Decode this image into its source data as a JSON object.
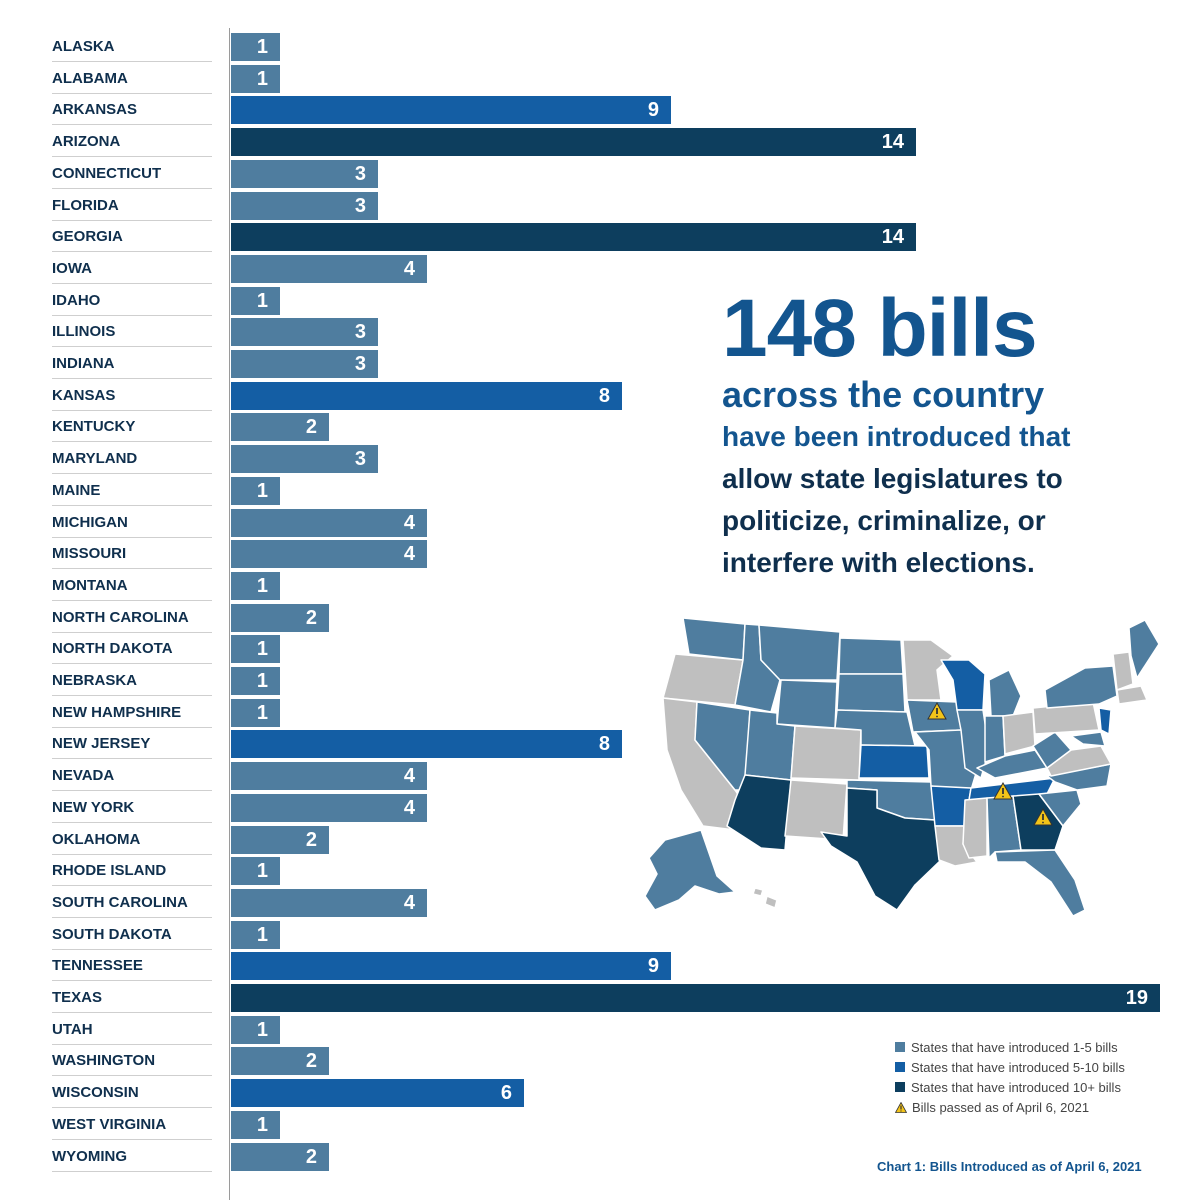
{
  "chart_data": {
    "type": "bar",
    "orientation": "horizontal",
    "categories": [
      "ALASKA",
      "ALABAMA",
      "ARKANSAS",
      "ARIZONA",
      "CONNECTICUT",
      "FLORIDA",
      "GEORGIA",
      "IOWA",
      "IDAHO",
      "ILLINOIS",
      "INDIANA",
      "KANSAS",
      "KENTUCKY",
      "MARYLAND",
      "MAINE",
      "MICHIGAN",
      "MISSOURI",
      "MONTANA",
      "NORTH CAROLINA",
      "NORTH DAKOTA",
      "NEBRASKA",
      "NEW HAMPSHIRE",
      "NEW JERSEY",
      "NEVADA",
      "NEW YORK",
      "OKLAHOMA",
      "RHODE ISLAND",
      "SOUTH CAROLINA",
      "SOUTH DAKOTA",
      "TENNESSEE",
      "TEXAS",
      "UTAH",
      "WASHINGTON",
      "WISCONSIN",
      "WEST VIRGINIA",
      "WYOMING"
    ],
    "values": [
      1,
      1,
      9,
      14,
      3,
      3,
      14,
      4,
      1,
      3,
      3,
      8,
      2,
      3,
      1,
      4,
      4,
      1,
      2,
      1,
      1,
      1,
      8,
      4,
      4,
      2,
      1,
      4,
      1,
      9,
      19,
      1,
      2,
      6,
      1,
      2
    ],
    "xlim": [
      0,
      19
    ],
    "title": "Chart 1: Bills Introduced as of April 6, 2021",
    "xlabel": "",
    "ylabel": "",
    "grid": false,
    "legend": [
      {
        "label": "States that have introduced 1-5 bills",
        "color": "#4f7d9f"
      },
      {
        "label": "States that have introduced 5-10 bills",
        "color": "#145ea4"
      },
      {
        "label": "States that have introduced 10+ bills",
        "color": "#0d3e5e"
      },
      {
        "label": "Bills passed as of April 6, 2021",
        "icon": "warning-icon"
      }
    ],
    "legend_position": "bottom-right"
  },
  "headline": {
    "big": "148 bills",
    "sub": "across the country",
    "body": [
      "have been introduced that",
      "allow state legislatures to",
      "politicize, criminalize, or",
      "interfere  with elections."
    ]
  },
  "colors": {
    "tier_low": "#4f7d9f",
    "tier_mid": "#145ea4",
    "tier_high": "#0d3e5e",
    "heading": "#13558f",
    "text_dark": "#0f2f4d",
    "map_gray": "#bfbfbf",
    "warning": "#f3c419"
  },
  "map": {
    "icon": "us-states-map-icon",
    "warning_icon": "warning-icon"
  }
}
